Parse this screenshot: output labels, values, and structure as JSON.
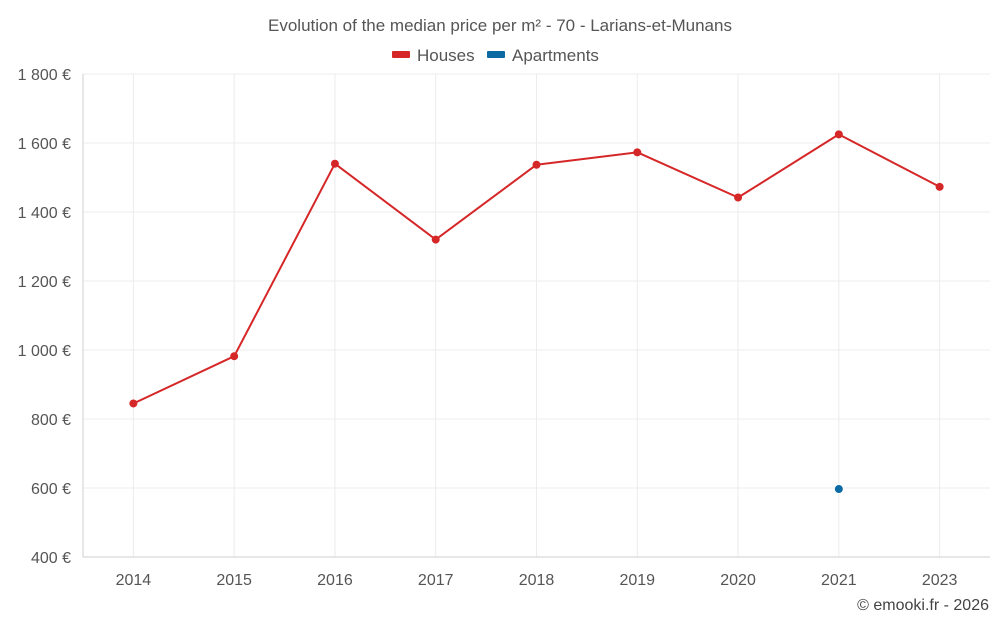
{
  "chart_data": {
    "type": "line",
    "title": "Evolution of the median price per m² - 70 - Larians-et-Munans",
    "categories": [
      "2014",
      "2015",
      "2016",
      "2017",
      "2018",
      "2019",
      "2020",
      "2021",
      "2023"
    ],
    "series": [
      {
        "name": "Houses",
        "color": "#d62728",
        "values": [
          845,
          982,
          1540,
          1320,
          1537,
          1573,
          1442,
          1625,
          1473
        ]
      },
      {
        "name": "Apartments",
        "color": "#0a6aa1",
        "values": [
          null,
          null,
          null,
          null,
          null,
          null,
          null,
          597,
          null
        ]
      }
    ],
    "ylim": [
      400,
      1800
    ],
    "yticks": [
      400,
      600,
      800,
      1000,
      1200,
      1400,
      1600,
      1800
    ],
    "ytick_labels": [
      "400 €",
      "600 €",
      "800 €",
      "1 000 €",
      "1 200 €",
      "1 400 €",
      "1 600 €",
      "1 800 €"
    ],
    "xlabel": "",
    "ylabel": "",
    "grid": true,
    "legend_position": "top-center"
  },
  "credit": "© emooki.fr - 2026"
}
